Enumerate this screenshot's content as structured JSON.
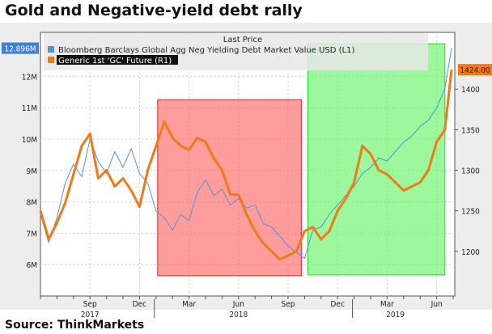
{
  "title": "Gold and Negative-yield debt rally",
  "source": "Source: ThinkMarkets",
  "chart_data": {
    "type": "line",
    "title": "Gold and Negative-yield debt rally",
    "legend_title": "Last Price",
    "legend_placement": "top-left",
    "x_ticks": [
      {
        "m": 3,
        "label": "Sep"
      },
      {
        "m": 6,
        "label": "Dec"
      },
      {
        "m": 9,
        "label": "Mar"
      },
      {
        "m": 12,
        "label": "Jun"
      },
      {
        "m": 15,
        "label": "Sep"
      },
      {
        "m": 18,
        "label": "Dec"
      },
      {
        "m": 21,
        "label": "Mar"
      },
      {
        "m": 24,
        "label": "Jun"
      }
    ],
    "x_years": [
      {
        "m": 3,
        "label": "2017"
      },
      {
        "m": 12,
        "label": "2018"
      },
      {
        "m": 21.5,
        "label": "2019"
      }
    ],
    "x_range_months_from_jun2017": [
      0,
      25.1
    ],
    "left_axis": {
      "ticks": [
        "6M",
        "7M",
        "8M",
        "9M",
        "10M",
        "11M",
        "12M"
      ],
      "values": [
        6,
        7,
        8,
        9,
        10,
        11,
        12
      ],
      "ylim": [
        5.0,
        13.4
      ],
      "last_label": "12.896M",
      "last_value": 12.896
    },
    "right_axis": {
      "ticks": [
        "1200",
        "1250",
        "1300",
        "1350",
        "1400"
      ],
      "values": [
        1200,
        1250,
        1300,
        1350,
        1400
      ],
      "ylim": [
        1145,
        1470
      ],
      "last_label": "1424.00",
      "last_value": 1424
    },
    "series": [
      {
        "name": "Bloomberg Barclays Global Agg Neg Yielding Debt Market Value USD  (L1)",
        "axis": "left",
        "color": "#5b8fd6",
        "x": [
          0,
          0.5,
          1,
          1.5,
          2,
          2.5,
          3,
          3.5,
          4,
          4.5,
          5,
          5.5,
          6,
          6.5,
          7,
          7.5,
          8,
          8.5,
          9,
          9.5,
          10,
          10.5,
          11,
          11.5,
          12,
          12.5,
          13,
          13.5,
          14,
          14.5,
          15,
          15.5,
          16,
          16.5,
          17,
          17.5,
          18,
          18.5,
          19,
          19.5,
          20,
          20.5,
          21,
          21.5,
          22,
          22.5,
          23,
          23.5,
          24,
          24.5,
          24.9
        ],
        "y": [
          7.6,
          6.7,
          7.5,
          8.6,
          9.2,
          8.8,
          10.0,
          9.3,
          8.9,
          9.6,
          9.1,
          9.7,
          8.9,
          8.6,
          7.7,
          7.5,
          7.1,
          7.6,
          7.4,
          8.3,
          8.7,
          8.2,
          8.4,
          7.9,
          8.1,
          7.8,
          7.9,
          7.3,
          7.2,
          6.9,
          6.6,
          6.4,
          6.2,
          7.1,
          7.2,
          7.6,
          7.9,
          8.2,
          8.5,
          8.9,
          9.1,
          9.4,
          9.3,
          9.6,
          9.9,
          10.1,
          10.4,
          10.6,
          11.0,
          11.6,
          12.896
        ]
      },
      {
        "name": "Generic 1st 'GC' Future  (R1)",
        "axis": "right",
        "color": "#f07a1a",
        "x": [
          0,
          0.5,
          1,
          1.5,
          2,
          2.5,
          3,
          3.5,
          4,
          4.5,
          5,
          5.5,
          6,
          6.5,
          7,
          7.5,
          8,
          8.5,
          9,
          9.5,
          10,
          10.5,
          11,
          11.5,
          12,
          12.5,
          13,
          13.5,
          14,
          14.5,
          15,
          15.5,
          16,
          16.5,
          17,
          17.5,
          18,
          18.5,
          19,
          19.5,
          20,
          20.5,
          21,
          21.5,
          22,
          22.5,
          23,
          23.5,
          24,
          24.5,
          24.9
        ],
        "y": [
          1250,
          1215,
          1235,
          1260,
          1295,
          1330,
          1345,
          1290,
          1300,
          1280,
          1290,
          1275,
          1255,
          1300,
          1330,
          1360,
          1340,
          1330,
          1325,
          1340,
          1335,
          1315,
          1300,
          1270,
          1270,
          1245,
          1225,
          1210,
          1200,
          1190,
          1195,
          1200,
          1225,
          1230,
          1215,
          1225,
          1250,
          1265,
          1285,
          1330,
          1320,
          1300,
          1295,
          1285,
          1275,
          1280,
          1285,
          1300,
          1335,
          1350,
          1424
        ]
      }
    ],
    "annotations": [
      {
        "type": "rect",
        "color": "#ff5a5a",
        "x": [
          7.1,
          15.8
        ],
        "right_y": [
          1170,
          1387
        ]
      },
      {
        "type": "rect",
        "color": "#5cf25c",
        "x": [
          16.2,
          24.5
        ],
        "right_y": [
          1171,
          1456
        ]
      }
    ]
  }
}
